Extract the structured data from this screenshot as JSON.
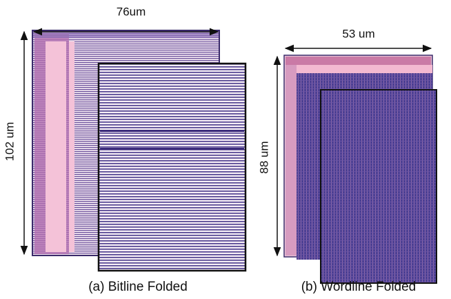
{
  "panels": [
    {
      "width_label": "76um",
      "height_label": "102 um",
      "caption": "(a) Bitline Folded"
    },
    {
      "width_label": "53 um",
      "height_label": "88 um",
      "caption": "(b) Wordline Folded"
    }
  ]
}
